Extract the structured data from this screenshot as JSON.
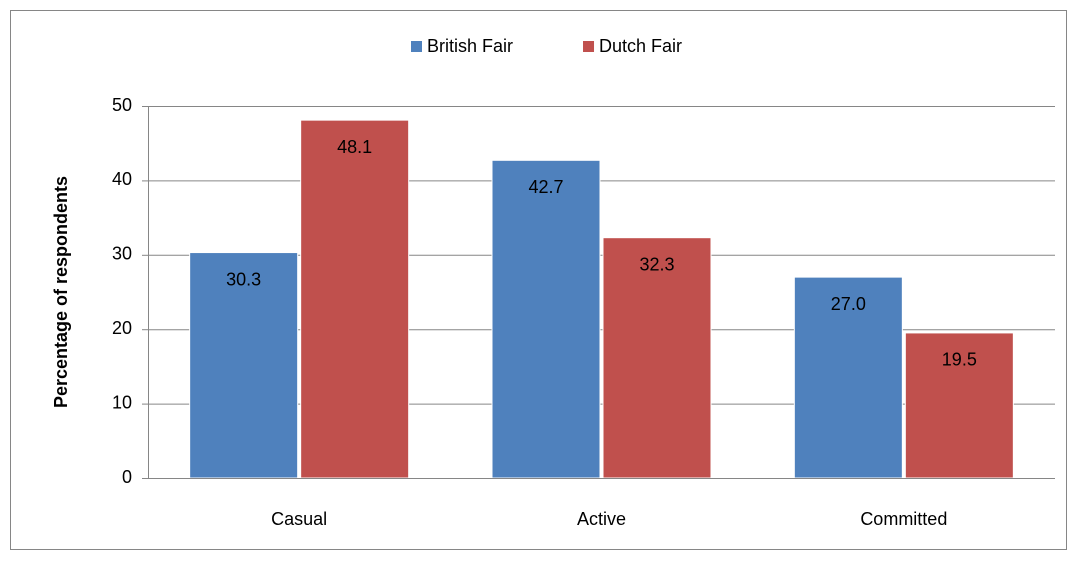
{
  "chart_data": {
    "type": "bar",
    "y_label": "Percentage of respondents",
    "categories": [
      "Casual",
      "Active",
      "Committed"
    ],
    "series": [
      {
        "name": "British Fair",
        "color": "#4f81bd",
        "values": [
          30.3,
          42.7,
          27.0
        ],
        "value_labels": [
          "30.3",
          "42.7",
          "27.0"
        ]
      },
      {
        "name": "Dutch Fair",
        "color": "#c0504d",
        "values": [
          48.1,
          32.3,
          19.5
        ]
      }
    ],
    "ylim": [
      0,
      50
    ],
    "yticks": [
      0,
      10,
      20,
      30,
      40,
      50
    ],
    "grid": true,
    "legend": "top"
  }
}
